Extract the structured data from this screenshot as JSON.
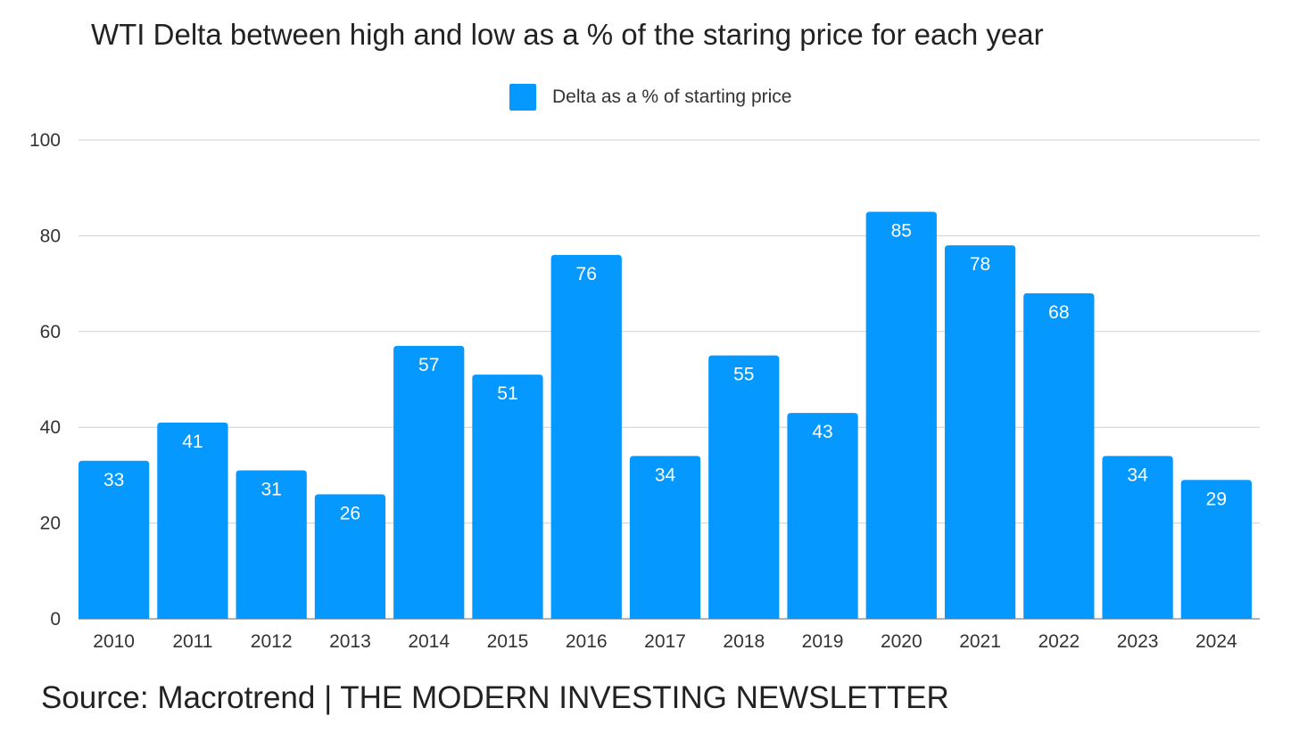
{
  "title": "WTI Delta between high and low as a % of the staring price for each year",
  "source": "Source: Macrotrend | THE MODERN INVESTING NEWSLETTER",
  "chart_data": {
    "type": "bar",
    "categories": [
      "2010",
      "2011",
      "2012",
      "2013",
      "2014",
      "2015",
      "2016",
      "2017",
      "2018",
      "2019",
      "2020",
      "2021",
      "2022",
      "2023",
      "2024"
    ],
    "series": [
      {
        "name": "Delta as a % of starting price",
        "values": [
          33,
          41,
          31,
          26,
          57,
          51,
          76,
          34,
          55,
          43,
          85,
          78,
          68,
          34,
          29
        ]
      }
    ],
    "ylim": [
      0,
      100
    ],
    "yticks": [
      0,
      20,
      40,
      60,
      80,
      100
    ],
    "ytick_labels": [
      "0",
      "20",
      "40",
      "60",
      "80",
      "100"
    ],
    "grid": true,
    "legend": "top-center",
    "data_labels": true,
    "bar_color": "#0599ff",
    "label_color": "#ffffff"
  }
}
